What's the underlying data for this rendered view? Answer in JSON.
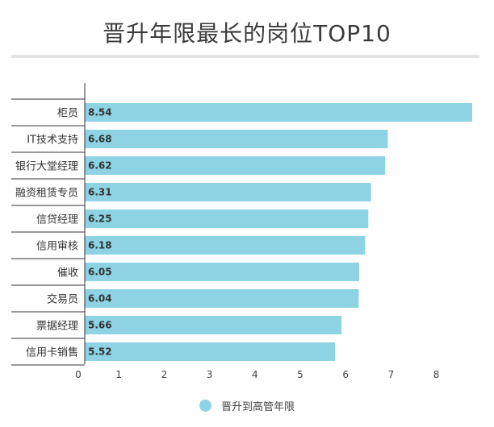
{
  "chart_data": {
    "type": "bar",
    "orientation": "horizontal",
    "title": "晋升年限最长的岗位TOP10",
    "categories": [
      "柜员",
      "IT技术支持",
      "银行大堂经理",
      "融资租赁专员",
      "信贷经理",
      "信用审核",
      "催收",
      "交易员",
      "票据经理",
      "信用卡销售"
    ],
    "series": [
      {
        "name": "晋升到高管年限",
        "values": [
          8.54,
          6.68,
          6.62,
          6.31,
          6.25,
          6.18,
          6.05,
          6.04,
          5.66,
          5.52
        ],
        "labels": [
          "8.54",
          "6.68",
          "6.62",
          "6.31",
          "6.25",
          "6.18",
          "6.05",
          "6.04",
          "5.66",
          "5.52"
        ]
      }
    ],
    "x_ticks": [
      "0",
      "1",
      "2",
      "3",
      "4",
      "5",
      "6",
      "7",
      "8"
    ],
    "xlim": [
      0,
      8.54
    ],
    "grid": false,
    "legend_position": "bottom",
    "bar_color": "#8dd3e3"
  }
}
